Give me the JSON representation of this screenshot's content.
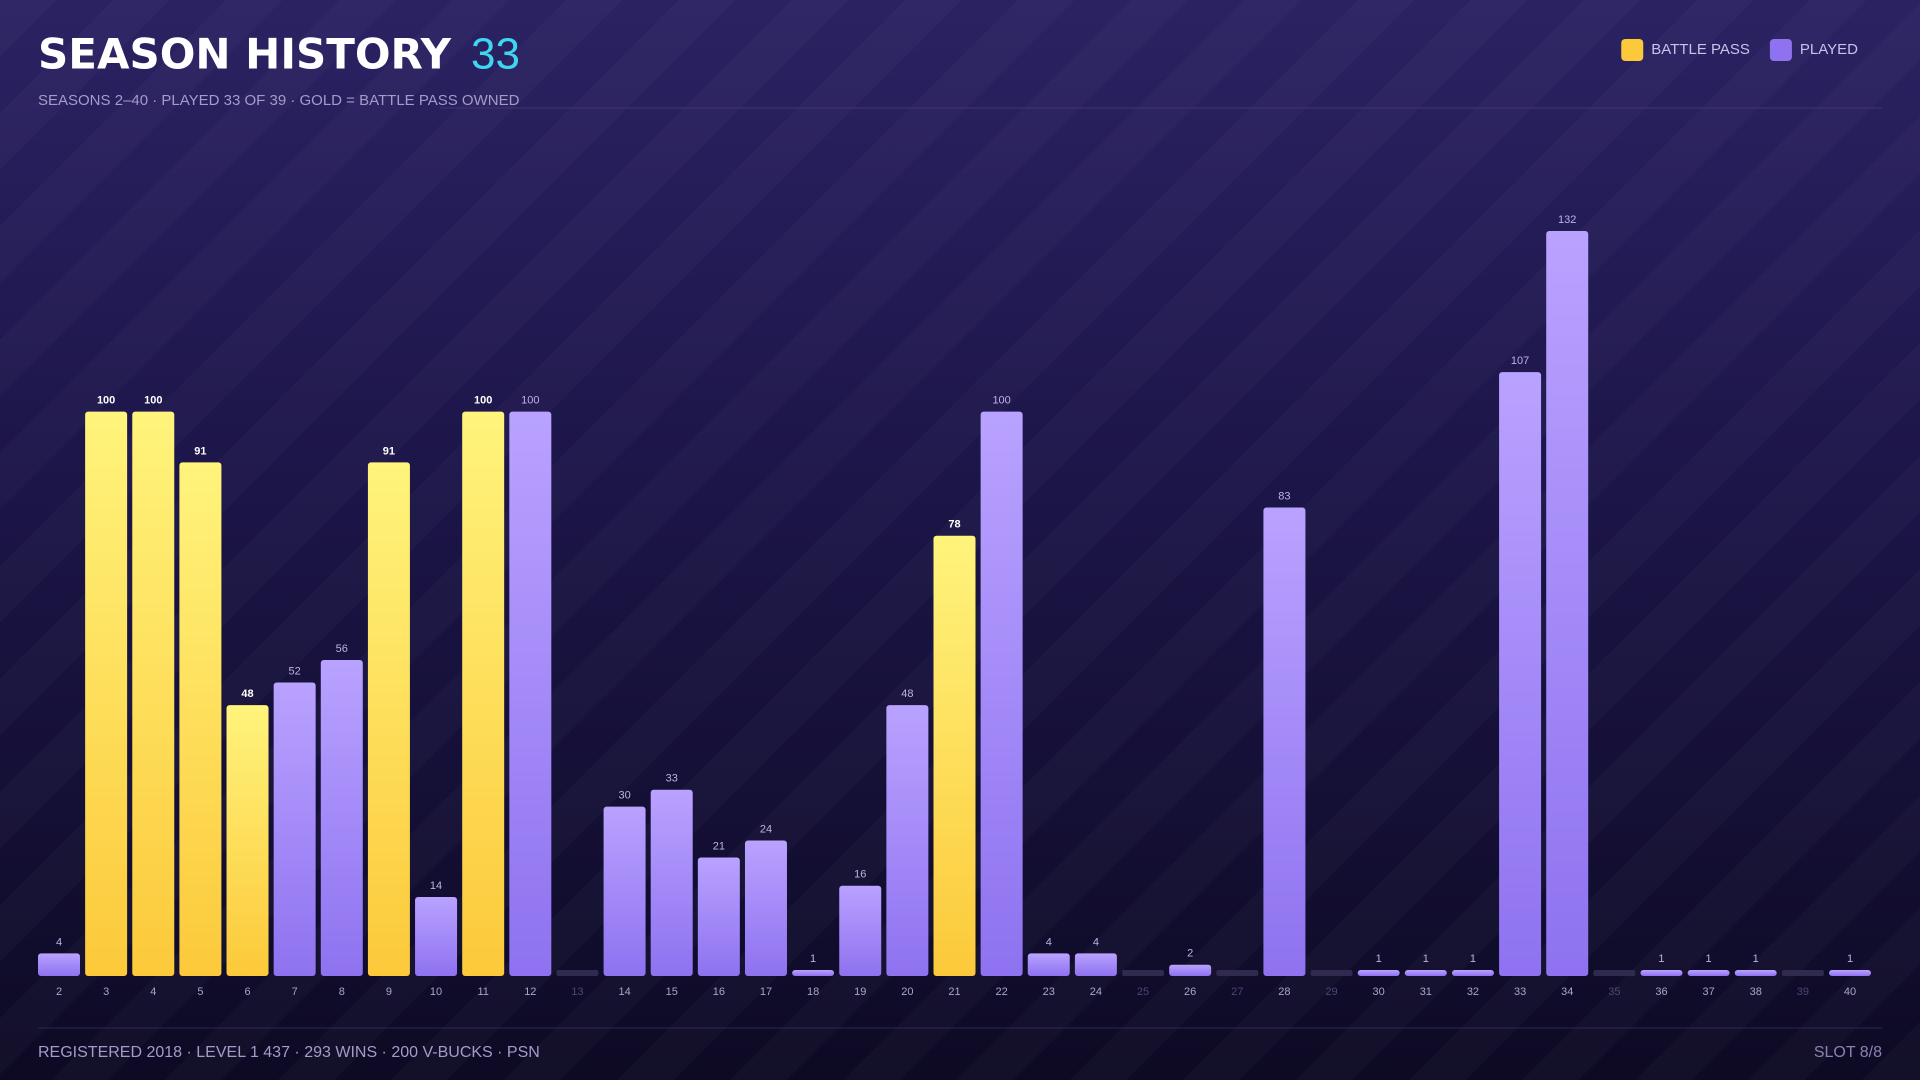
{
  "chart_data": {
    "type": "bar",
    "title": "SEASON HISTORY",
    "title_count": 33,
    "subtitle": "SEASONS 2–40  ·  PLAYED 33 OF 39  ·  GOLD = BATTLE PASS OWNED",
    "footer_left": "REGISTERED 2018  ·  LEVEL 1 437  ·  293 WINS  ·  200 V-BUCKS  ·  PSN",
    "footer_right": "SLOT 8/8",
    "legend": "top-right",
    "categories": [
      "2",
      "3",
      "4",
      "5",
      "6",
      "7",
      "8",
      "9",
      "10",
      "11",
      "12",
      "13",
      "14",
      "15",
      "16",
      "17",
      "18",
      "19",
      "20",
      "21",
      "22",
      "23",
      "24",
      "25",
      "26",
      "27",
      "28",
      "29",
      "30",
      "31",
      "32",
      "33",
      "34",
      "35",
      "36",
      "37",
      "38",
      "39",
      "40"
    ],
    "series": [
      {
        "name": "BATTLE PASS",
        "color": "#fcc93a",
        "values": [
          null,
          100,
          100,
          91,
          48,
          null,
          null,
          91,
          null,
          100,
          null,
          null,
          null,
          null,
          null,
          null,
          null,
          null,
          null,
          78,
          null,
          null,
          null,
          null,
          null,
          null,
          null,
          null,
          null,
          null,
          null,
          null,
          null,
          null,
          null,
          null,
          null,
          null,
          null
        ]
      },
      {
        "name": "PLAYED",
        "color": "#8e72f0",
        "values": [
          4,
          null,
          null,
          null,
          null,
          52,
          56,
          null,
          14,
          null,
          100,
          null,
          30,
          33,
          21,
          24,
          1,
          16,
          48,
          null,
          100,
          4,
          4,
          null,
          2,
          null,
          83,
          null,
          1,
          1,
          1,
          107,
          132,
          null,
          1,
          1,
          1,
          null,
          1
        ]
      }
    ]
  }
}
